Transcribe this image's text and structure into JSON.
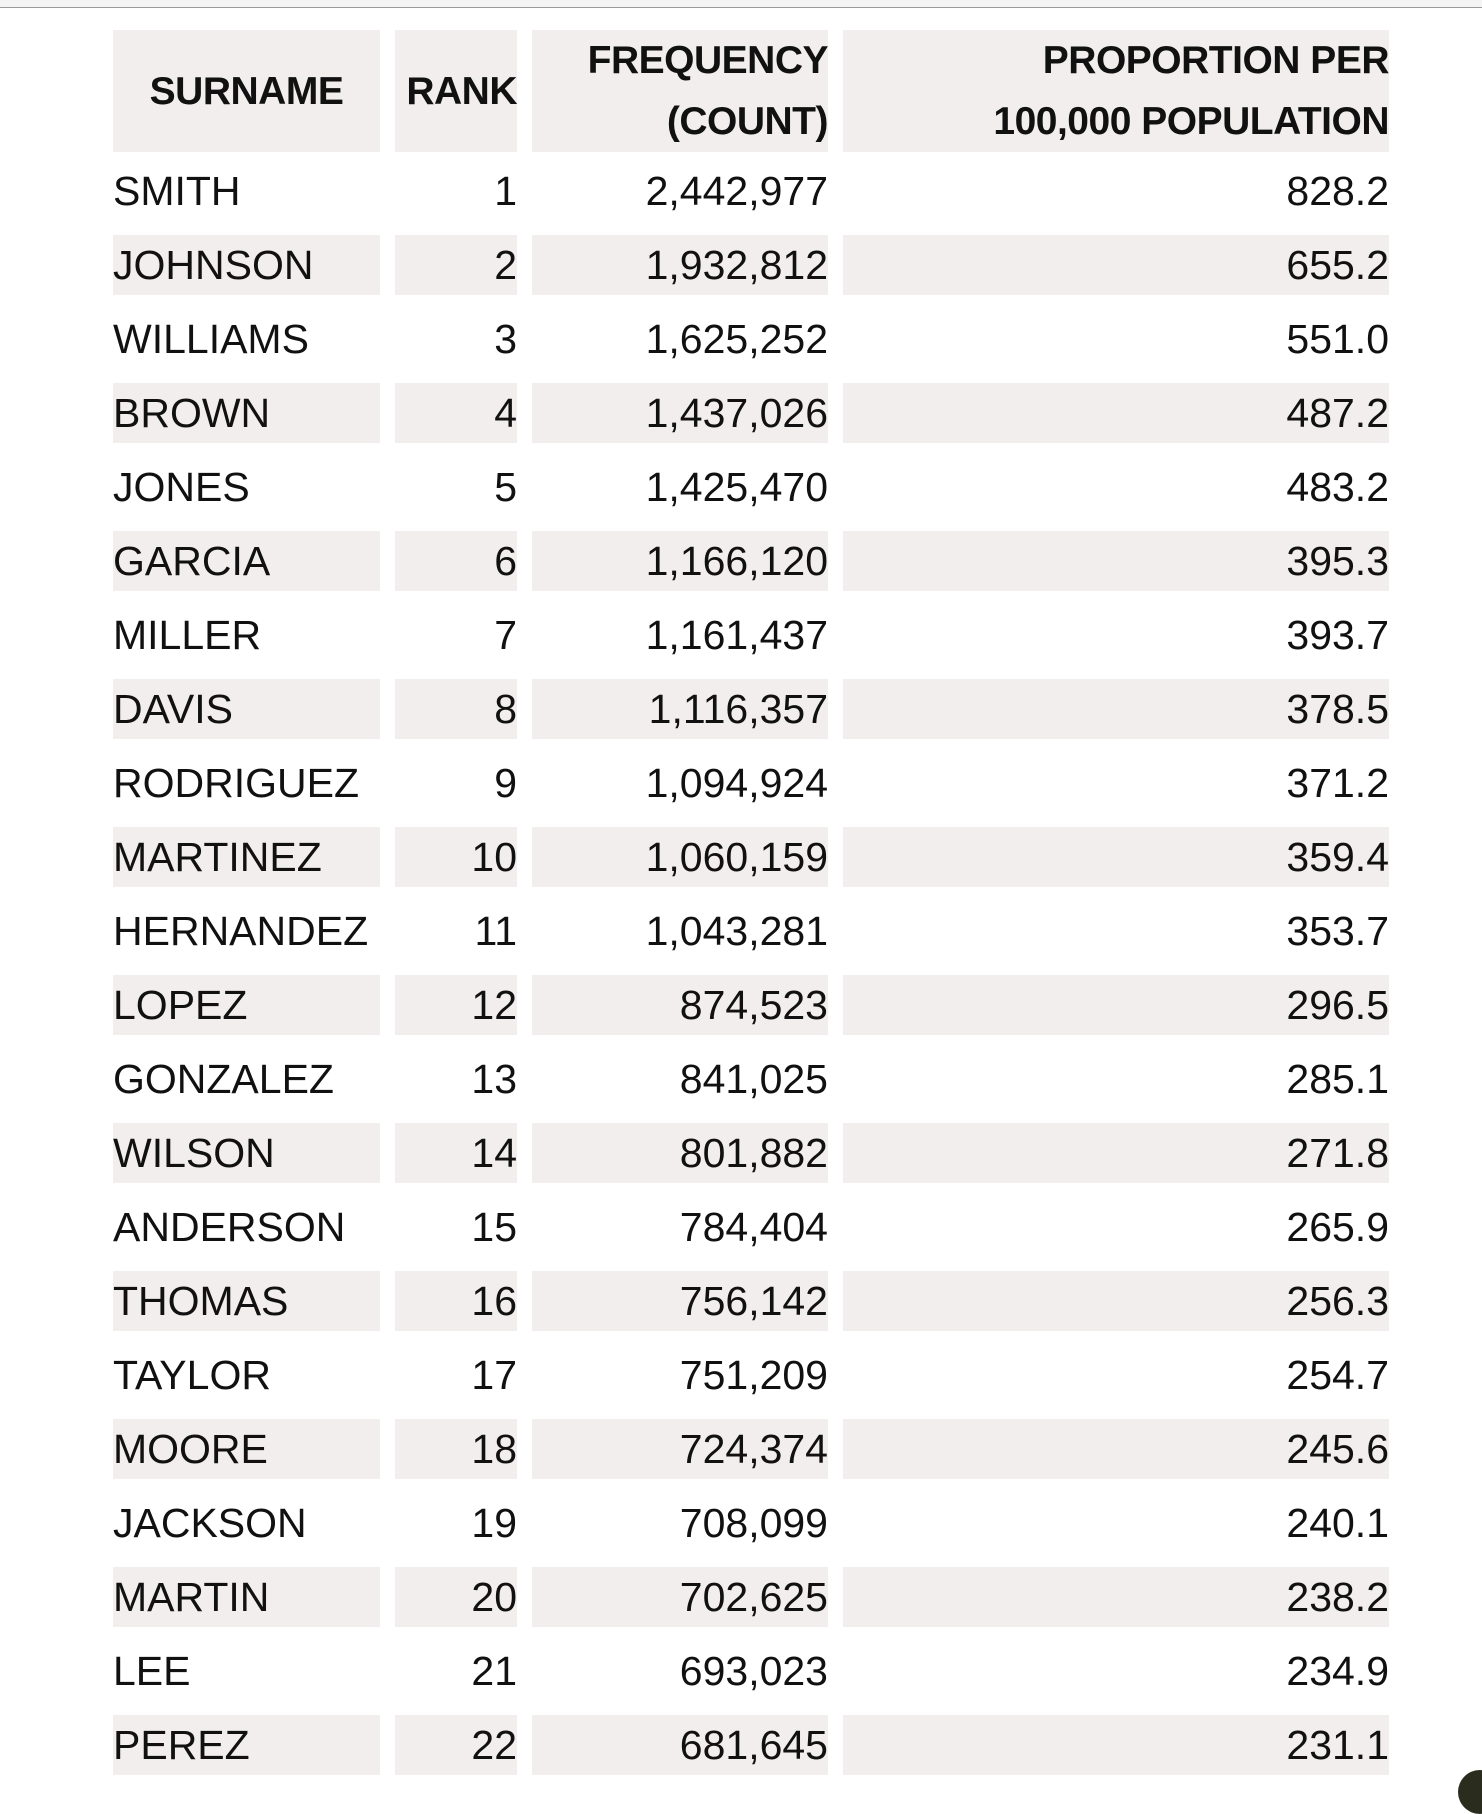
{
  "table": {
    "headers": [
      "SURNAME",
      "RANK",
      "FREQUENCY (COUNT)",
      "PROPORTION PER 100,000 POPULATION"
    ],
    "header_lines": {
      "frequency": [
        "FREQUENCY",
        "(COUNT)"
      ],
      "proportion": [
        "PROPORTION PER",
        "100,000 POPULATION"
      ]
    },
    "rows": [
      [
        "SMITH",
        "1",
        "2,442,977",
        "828.2"
      ],
      [
        "JOHNSON",
        "2",
        "1,932,812",
        "655.2"
      ],
      [
        "WILLIAMS",
        "3",
        "1,625,252",
        "551.0"
      ],
      [
        "BROWN",
        "4",
        "1,437,026",
        "487.2"
      ],
      [
        "JONES",
        "5",
        "1,425,470",
        "483.2"
      ],
      [
        "GARCIA",
        "6",
        "1,166,120",
        "395.3"
      ],
      [
        "MILLER",
        "7",
        "1,161,437",
        "393.7"
      ],
      [
        "DAVIS",
        "8",
        "1,116,357",
        "378.5"
      ],
      [
        "RODRIGUEZ",
        "9",
        "1,094,924",
        "371.2"
      ],
      [
        "MARTINEZ",
        "10",
        "1,060,159",
        "359.4"
      ],
      [
        "HERNANDEZ",
        "11",
        "1,043,281",
        "353.7"
      ],
      [
        "LOPEZ",
        "12",
        "874,523",
        "296.5"
      ],
      [
        "GONZALEZ",
        "13",
        "841,025",
        "285.1"
      ],
      [
        "WILSON",
        "14",
        "801,882",
        "271.8"
      ],
      [
        "ANDERSON",
        "15",
        "784,404",
        "265.9"
      ],
      [
        "THOMAS",
        "16",
        "756,142",
        "256.3"
      ],
      [
        "TAYLOR",
        "17",
        "751,209",
        "254.7"
      ],
      [
        "MOORE",
        "18",
        "724,374",
        "245.6"
      ],
      [
        "JACKSON",
        "19",
        "708,099",
        "240.1"
      ],
      [
        "MARTIN",
        "20",
        "702,625",
        "238.2"
      ],
      [
        "LEE",
        "21",
        "693,023",
        "234.9"
      ],
      [
        "PEREZ",
        "22",
        "681,645",
        "231.1"
      ]
    ],
    "stripe_color": "#f2eeed"
  }
}
